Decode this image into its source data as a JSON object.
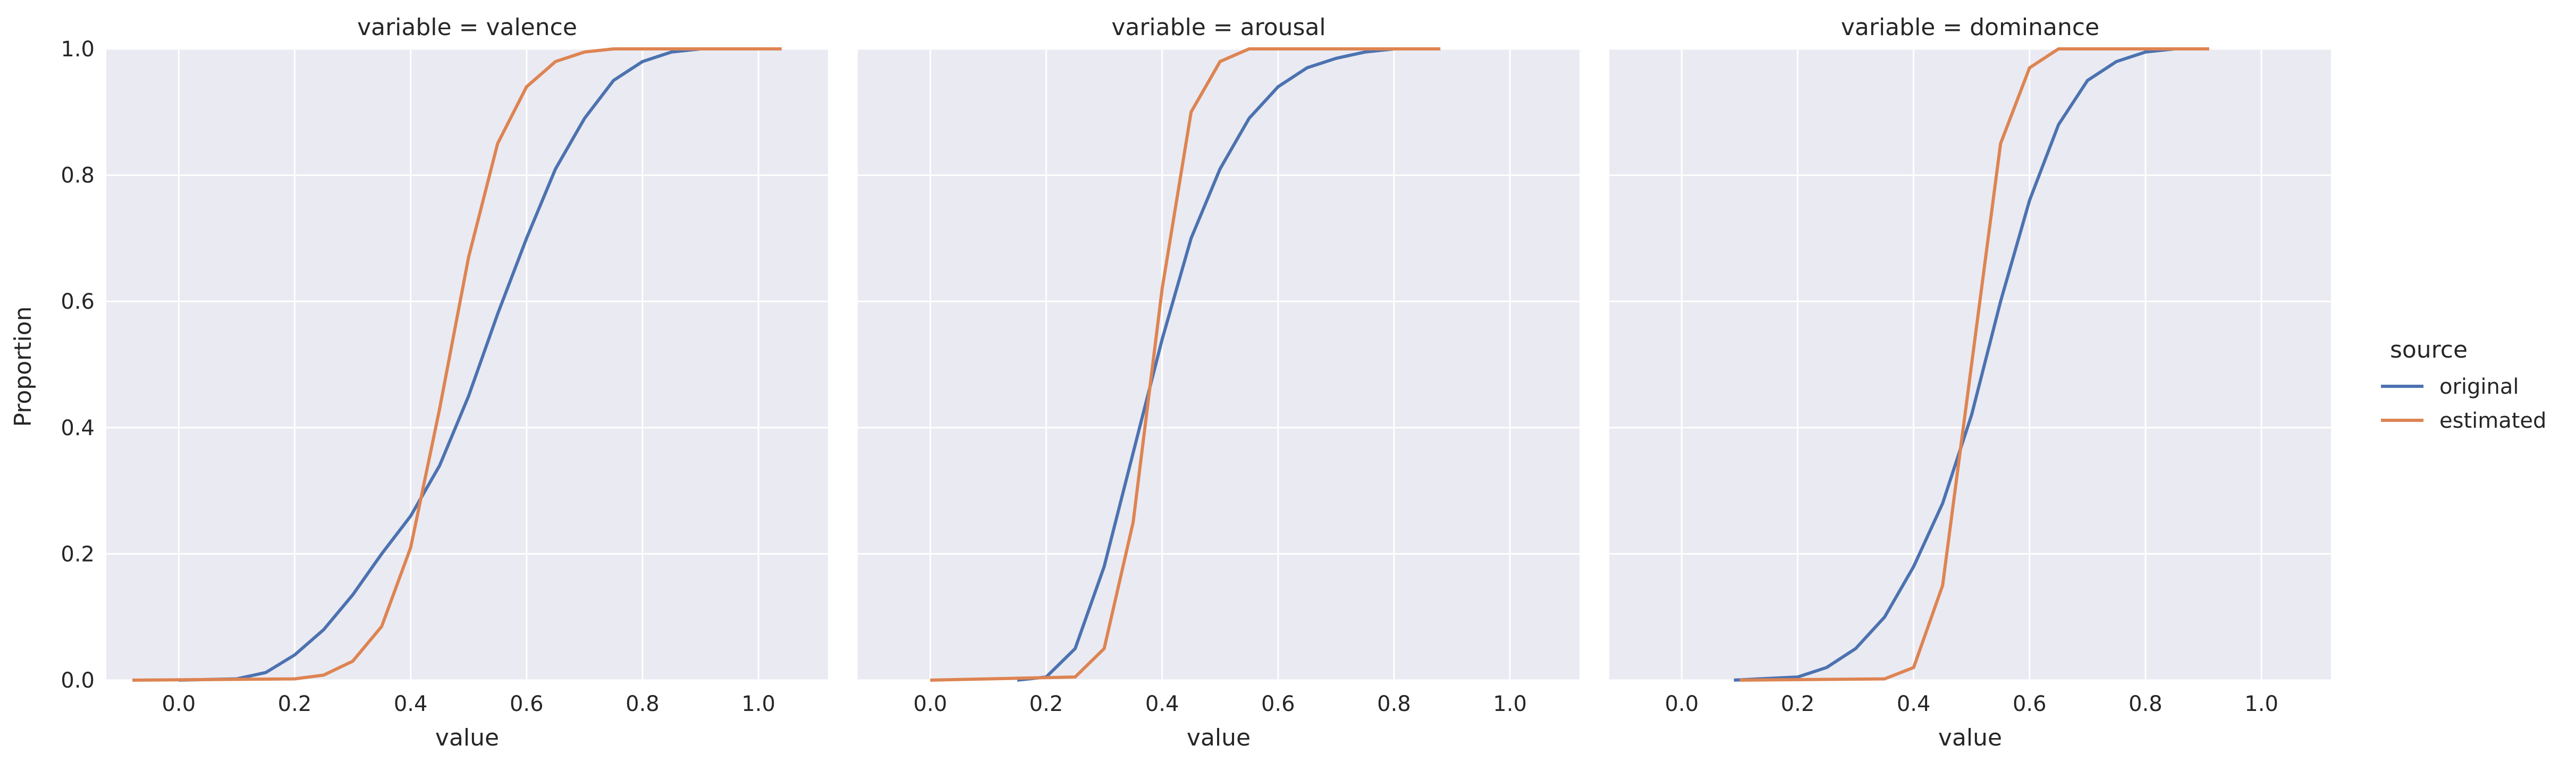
{
  "colors": {
    "panel_bg": "#EAEAF2",
    "grid": "#FFFFFF",
    "text": "#262626",
    "original": "#4C72B0",
    "estimated": "#DD8452"
  },
  "chart_data": {
    "type": "line",
    "subtype": "ecdf",
    "ylabel": "Proportion",
    "xlabel": "value",
    "xlim": [
      -0.125,
      1.12
    ],
    "ylim": [
      0,
      1
    ],
    "x_ticks": [
      "0.0",
      "0.2",
      "0.4",
      "0.6",
      "0.8",
      "1.0"
    ],
    "y_ticks": [
      "0.0",
      "0.2",
      "0.4",
      "0.6",
      "0.8",
      "1.0"
    ],
    "grid": true,
    "legend": {
      "title": "source",
      "position": "right",
      "entries": [
        "original",
        "estimated"
      ]
    },
    "panels": [
      {
        "title": "variable = valence",
        "series": [
          {
            "name": "original",
            "points": [
              [
                0.0,
                0.0
              ],
              [
                0.1,
                0.002
              ],
              [
                0.15,
                0.012
              ],
              [
                0.2,
                0.04
              ],
              [
                0.25,
                0.08
              ],
              [
                0.3,
                0.135
              ],
              [
                0.35,
                0.2
              ],
              [
                0.4,
                0.26
              ],
              [
                0.45,
                0.34
              ],
              [
                0.5,
                0.45
              ],
              [
                0.55,
                0.58
              ],
              [
                0.6,
                0.7
              ],
              [
                0.65,
                0.81
              ],
              [
                0.7,
                0.89
              ],
              [
                0.75,
                0.95
              ],
              [
                0.8,
                0.98
              ],
              [
                0.85,
                0.995
              ],
              [
                0.9,
                1.0
              ],
              [
                0.95,
                1.0
              ]
            ]
          },
          {
            "name": "estimated",
            "points": [
              [
                -0.08,
                0.0
              ],
              [
                0.2,
                0.002
              ],
              [
                0.25,
                0.008
              ],
              [
                0.3,
                0.03
              ],
              [
                0.35,
                0.085
              ],
              [
                0.4,
                0.21
              ],
              [
                0.45,
                0.43
              ],
              [
                0.5,
                0.67
              ],
              [
                0.55,
                0.85
              ],
              [
                0.6,
                0.94
              ],
              [
                0.65,
                0.98
              ],
              [
                0.7,
                0.995
              ],
              [
                0.75,
                1.0
              ],
              [
                1.04,
                1.0
              ]
            ]
          }
        ]
      },
      {
        "title": "variable = arousal",
        "series": [
          {
            "name": "original",
            "points": [
              [
                0.15,
                0.0
              ],
              [
                0.2,
                0.005
              ],
              [
                0.25,
                0.05
              ],
              [
                0.3,
                0.18
              ],
              [
                0.35,
                0.36
              ],
              [
                0.4,
                0.54
              ],
              [
                0.45,
                0.7
              ],
              [
                0.5,
                0.81
              ],
              [
                0.55,
                0.89
              ],
              [
                0.6,
                0.94
              ],
              [
                0.65,
                0.97
              ],
              [
                0.7,
                0.985
              ],
              [
                0.75,
                0.995
              ],
              [
                0.8,
                1.0
              ],
              [
                0.85,
                1.0
              ]
            ]
          },
          {
            "name": "estimated",
            "points": [
              [
                0.0,
                0.0
              ],
              [
                0.25,
                0.005
              ],
              [
                0.3,
                0.05
              ],
              [
                0.35,
                0.25
              ],
              [
                0.4,
                0.62
              ],
              [
                0.45,
                0.9
              ],
              [
                0.5,
                0.98
              ],
              [
                0.55,
                1.0
              ],
              [
                0.88,
                1.0
              ]
            ]
          }
        ]
      },
      {
        "title": "variable = dominance",
        "series": [
          {
            "name": "original",
            "points": [
              [
                0.09,
                0.0
              ],
              [
                0.2,
                0.005
              ],
              [
                0.25,
                0.02
              ],
              [
                0.3,
                0.05
              ],
              [
                0.35,
                0.1
              ],
              [
                0.4,
                0.18
              ],
              [
                0.45,
                0.28
              ],
              [
                0.5,
                0.42
              ],
              [
                0.55,
                0.6
              ],
              [
                0.6,
                0.76
              ],
              [
                0.65,
                0.88
              ],
              [
                0.7,
                0.95
              ],
              [
                0.75,
                0.98
              ],
              [
                0.8,
                0.995
              ],
              [
                0.85,
                1.0
              ]
            ]
          },
          {
            "name": "estimated",
            "points": [
              [
                0.1,
                0.0
              ],
              [
                0.35,
                0.002
              ],
              [
                0.4,
                0.02
              ],
              [
                0.45,
                0.15
              ],
              [
                0.5,
                0.5
              ],
              [
                0.55,
                0.85
              ],
              [
                0.6,
                0.97
              ],
              [
                0.65,
                1.0
              ],
              [
                0.91,
                1.0
              ]
            ]
          }
        ]
      }
    ]
  }
}
